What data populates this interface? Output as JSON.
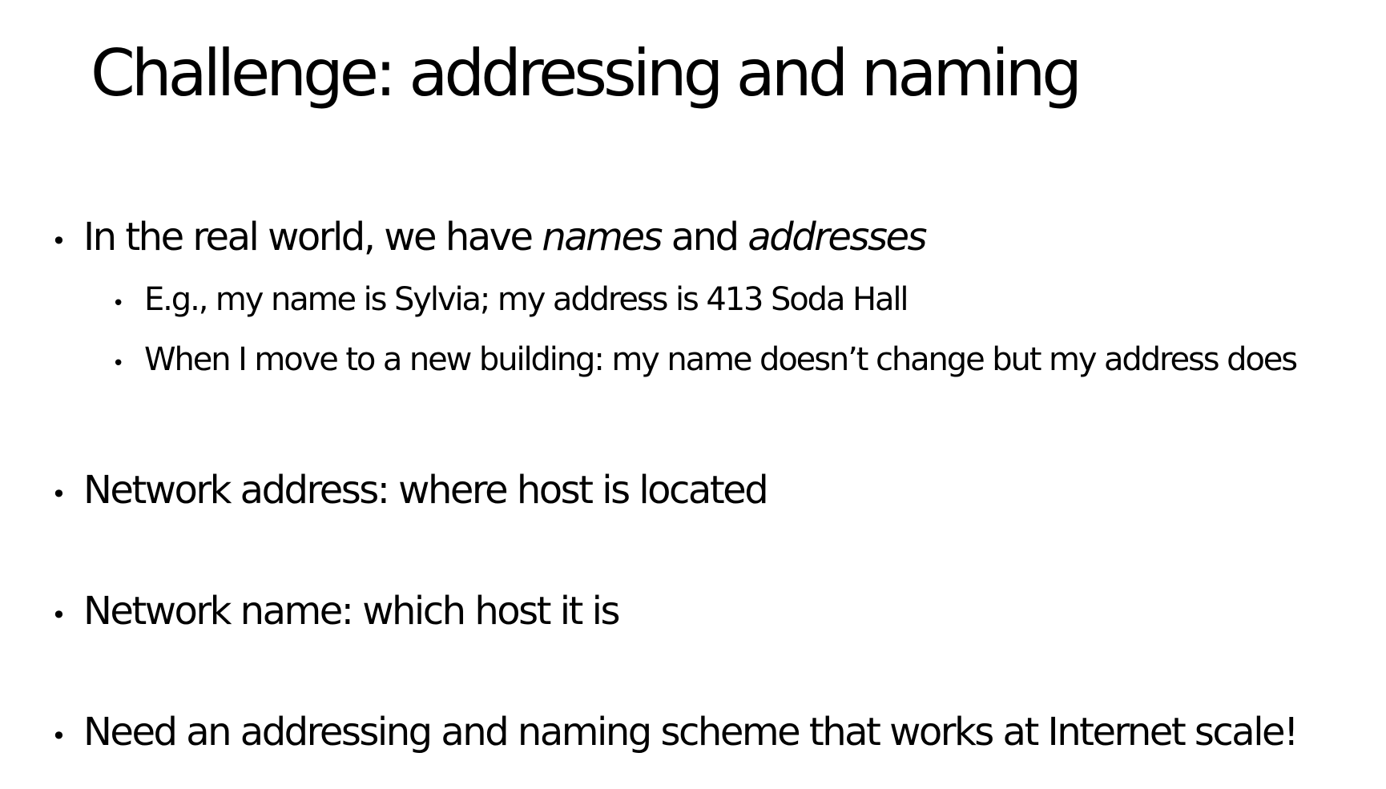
{
  "slide": {
    "title": "Challenge: addressing and naming",
    "bullet_glyph": "•",
    "bullets": [
      {
        "parts": [
          "In the real world, we have ",
          "names",
          " and ",
          "addresses"
        ],
        "sub_bullets": [
          "E.g., my name is Sylvia; my address is 413 Soda Hall",
          "When I move to a new building: my name doesn’t change but my address does"
        ]
      },
      {
        "text": "Network address: where host is located"
      },
      {
        "text": "Network name: which host it is"
      },
      {
        "text": "Need an addressing and naming scheme that works at Internet scale!"
      }
    ]
  }
}
